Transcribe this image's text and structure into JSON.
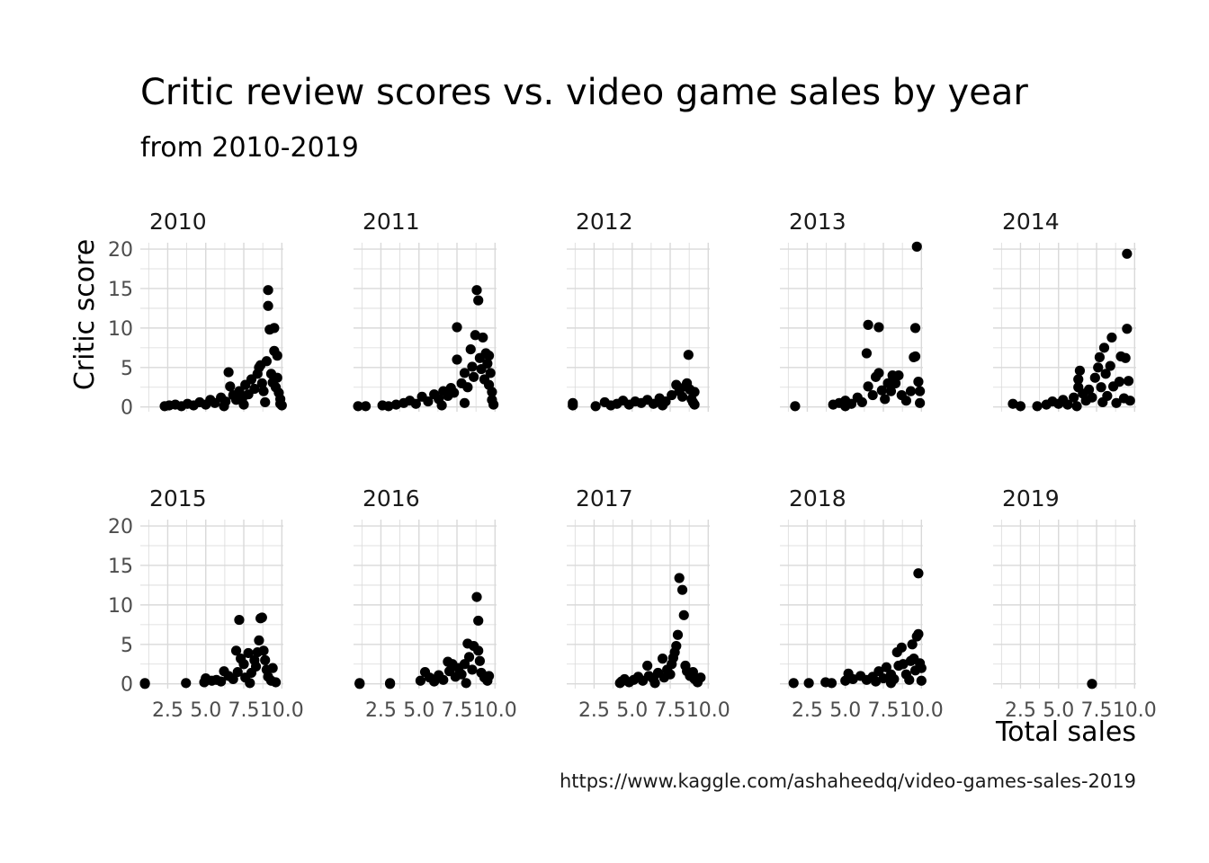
{
  "chart_data": {
    "type": "scatter",
    "faceted": true,
    "title": "Critic review scores vs. video game sales by year",
    "subtitle": "from 2010-2019",
    "xlabel": "Total sales",
    "ylabel": "Critic score",
    "caption": "https://www.kaggle.com/ashaheedq/video-games-sales-2019",
    "xlim": [
      0.7,
      10.1
    ],
    "ylim": [
      -0.6,
      20.8
    ],
    "x_ticks": [
      "2.5",
      "5.0",
      "7.5",
      "10.0"
    ],
    "x_tick_values": [
      2.5,
      5.0,
      7.5,
      10.0
    ],
    "y_ticks": [
      "0",
      "5",
      "10",
      "15",
      "20"
    ],
    "y_tick_values": [
      0,
      5,
      10,
      15,
      20
    ],
    "grid": true,
    "layout": {
      "rows": 2,
      "cols": 5
    },
    "marker_color": "#000000",
    "grid_color": "#d9d9d9",
    "panels": [
      {
        "label": "2010",
        "points": [
          [
            2.3,
            0.1
          ],
          [
            2.6,
            0.2
          ],
          [
            3.0,
            0.3
          ],
          [
            3.4,
            0.1
          ],
          [
            3.8,
            0.4
          ],
          [
            4.2,
            0.2
          ],
          [
            4.6,
            0.6
          ],
          [
            5.0,
            0.3
          ],
          [
            5.3,
            0.9
          ],
          [
            5.6,
            0.5
          ],
          [
            6.0,
            1.2
          ],
          [
            6.3,
            0.7
          ],
          [
            6.5,
            4.4
          ],
          [
            6.6,
            2.6
          ],
          [
            6.8,
            1.5
          ],
          [
            7.0,
            0.9
          ],
          [
            7.2,
            2.0
          ],
          [
            7.4,
            1.1
          ],
          [
            7.6,
            2.8
          ],
          [
            7.8,
            1.6
          ],
          [
            8.0,
            3.5
          ],
          [
            8.2,
            2.3
          ],
          [
            8.4,
            4.2
          ],
          [
            8.5,
            5.0
          ],
          [
            8.6,
            5.3
          ],
          [
            8.7,
            3.0
          ],
          [
            8.8,
            2.0
          ],
          [
            9.0,
            5.8
          ],
          [
            9.1,
            14.8
          ],
          [
            9.1,
            12.8
          ],
          [
            9.2,
            9.8
          ],
          [
            9.3,
            4.2
          ],
          [
            9.4,
            3.1
          ],
          [
            9.5,
            10.0
          ],
          [
            9.5,
            7.1
          ],
          [
            9.6,
            2.5
          ],
          [
            9.7,
            6.5
          ],
          [
            9.7,
            3.7
          ],
          [
            9.8,
            1.8
          ],
          [
            9.9,
            1.0
          ],
          [
            9.9,
            0.4
          ],
          [
            10.0,
            0.2
          ],
          [
            7.5,
            0.3
          ],
          [
            8.9,
            0.6
          ],
          [
            6.2,
            0.1
          ]
        ]
      },
      {
        "label": "2011",
        "points": [
          [
            1.0,
            0.1
          ],
          [
            1.5,
            0.1
          ],
          [
            2.6,
            0.2
          ],
          [
            3.0,
            0.1
          ],
          [
            3.5,
            0.3
          ],
          [
            4.0,
            0.5
          ],
          [
            4.4,
            0.8
          ],
          [
            4.8,
            0.4
          ],
          [
            5.2,
            1.3
          ],
          [
            5.6,
            0.7
          ],
          [
            6.0,
            1.6
          ],
          [
            6.3,
            1.0
          ],
          [
            6.6,
            2.0
          ],
          [
            6.9,
            1.4
          ],
          [
            7.1,
            2.4
          ],
          [
            7.3,
            1.8
          ],
          [
            7.5,
            6.0
          ],
          [
            7.5,
            10.1
          ],
          [
            7.8,
            3.0
          ],
          [
            8.0,
            4.3
          ],
          [
            8.2,
            2.5
          ],
          [
            8.4,
            7.3
          ],
          [
            8.5,
            5.1
          ],
          [
            8.6,
            3.8
          ],
          [
            8.7,
            9.1
          ],
          [
            8.8,
            14.8
          ],
          [
            8.9,
            13.5
          ],
          [
            9.0,
            6.2
          ],
          [
            9.1,
            4.8
          ],
          [
            9.2,
            8.8
          ],
          [
            9.3,
            3.5
          ],
          [
            9.4,
            6.8
          ],
          [
            9.5,
            5.5
          ],
          [
            9.6,
            2.8
          ],
          [
            9.6,
            6.5
          ],
          [
            9.7,
            4.3
          ],
          [
            9.8,
            1.9
          ],
          [
            9.8,
            0.9
          ],
          [
            9.9,
            0.3
          ],
          [
            8.0,
            0.5
          ],
          [
            6.5,
            0.2
          ]
        ]
      },
      {
        "label": "2012",
        "points": [
          [
            1.1,
            0.5
          ],
          [
            1.1,
            0.2
          ],
          [
            2.6,
            0.1
          ],
          [
            3.2,
            0.6
          ],
          [
            3.6,
            0.2
          ],
          [
            4.0,
            0.4
          ],
          [
            4.4,
            0.8
          ],
          [
            4.8,
            0.3
          ],
          [
            5.2,
            0.7
          ],
          [
            5.6,
            0.5
          ],
          [
            6.0,
            0.9
          ],
          [
            6.4,
            0.4
          ],
          [
            6.8,
            1.1
          ],
          [
            7.2,
            0.7
          ],
          [
            7.6,
            1.5
          ],
          [
            7.9,
            2.8
          ],
          [
            8.1,
            2.0
          ],
          [
            8.3,
            1.3
          ],
          [
            8.5,
            2.6
          ],
          [
            8.6,
            3.0
          ],
          [
            8.7,
            6.6
          ],
          [
            8.8,
            2.2
          ],
          [
            8.9,
            1.0
          ],
          [
            9.0,
            0.6
          ],
          [
            9.1,
            1.9
          ],
          [
            9.1,
            0.3
          ],
          [
            7.0,
            0.2
          ]
        ]
      },
      {
        "label": "2013",
        "points": [
          [
            1.7,
            0.1
          ],
          [
            4.2,
            0.3
          ],
          [
            4.6,
            0.5
          ],
          [
            5.0,
            0.8
          ],
          [
            5.4,
            0.4
          ],
          [
            5.8,
            1.2
          ],
          [
            6.1,
            0.6
          ],
          [
            6.4,
            6.8
          ],
          [
            6.5,
            2.6
          ],
          [
            6.5,
            10.4
          ],
          [
            6.8,
            1.5
          ],
          [
            7.0,
            3.8
          ],
          [
            7.2,
            10.1
          ],
          [
            7.2,
            4.3
          ],
          [
            7.4,
            2.1
          ],
          [
            7.6,
            1.0
          ],
          [
            7.8,
            3.0
          ],
          [
            8.0,
            2.0
          ],
          [
            8.1,
            4.0
          ],
          [
            8.3,
            3.0
          ],
          [
            8.5,
            4.0
          ],
          [
            8.7,
            1.5
          ],
          [
            9.0,
            0.8
          ],
          [
            9.3,
            2.0
          ],
          [
            9.5,
            6.3
          ],
          [
            9.6,
            6.4
          ],
          [
            9.6,
            10.0
          ],
          [
            9.7,
            20.3
          ],
          [
            9.8,
            3.2
          ],
          [
            9.9,
            2.0
          ],
          [
            9.9,
            0.5
          ],
          [
            5.0,
            0.1
          ]
        ]
      },
      {
        "label": "2014",
        "points": [
          [
            2.0,
            0.4
          ],
          [
            2.5,
            0.1
          ],
          [
            3.6,
            0.1
          ],
          [
            4.2,
            0.3
          ],
          [
            4.6,
            0.7
          ],
          [
            5.0,
            0.4
          ],
          [
            5.3,
            0.9
          ],
          [
            5.6,
            0.3
          ],
          [
            6.0,
            1.2
          ],
          [
            6.3,
            2.5
          ],
          [
            6.3,
            3.5
          ],
          [
            6.4,
            4.6
          ],
          [
            6.6,
            1.7
          ],
          [
            6.8,
            0.8
          ],
          [
            7.0,
            2.2
          ],
          [
            7.2,
            1.2
          ],
          [
            7.4,
            3.7
          ],
          [
            7.6,
            5.0
          ],
          [
            7.7,
            6.3
          ],
          [
            7.8,
            2.5
          ],
          [
            7.9,
            0.6
          ],
          [
            8.0,
            7.5
          ],
          [
            8.1,
            4.2
          ],
          [
            8.2,
            1.4
          ],
          [
            8.4,
            5.2
          ],
          [
            8.5,
            8.8
          ],
          [
            8.6,
            2.6
          ],
          [
            8.8,
            0.5
          ],
          [
            9.0,
            3.2
          ],
          [
            9.1,
            6.4
          ],
          [
            9.3,
            1.1
          ],
          [
            9.4,
            6.2
          ],
          [
            9.5,
            9.9
          ],
          [
            9.5,
            19.4
          ],
          [
            9.6,
            3.3
          ],
          [
            9.7,
            0.8
          ],
          [
            6.2,
            0.1
          ]
        ]
      },
      {
        "label": "2015",
        "points": [
          [
            1.0,
            0.1
          ],
          [
            1.0,
            0.0
          ],
          [
            3.7,
            0.1
          ],
          [
            4.9,
            0.2
          ],
          [
            5.0,
            0.7
          ],
          [
            5.4,
            0.4
          ],
          [
            5.7,
            0.5
          ],
          [
            6.0,
            0.3
          ],
          [
            6.2,
            1.6
          ],
          [
            6.5,
            1.0
          ],
          [
            6.8,
            0.6
          ],
          [
            7.0,
            4.2
          ],
          [
            7.1,
            1.5
          ],
          [
            7.2,
            8.1
          ],
          [
            7.3,
            3.2
          ],
          [
            7.5,
            2.5
          ],
          [
            7.6,
            0.8
          ],
          [
            7.8,
            3.9
          ],
          [
            8.0,
            1.4
          ],
          [
            8.2,
            3.0
          ],
          [
            8.3,
            2.2
          ],
          [
            8.4,
            4.0
          ],
          [
            8.5,
            5.5
          ],
          [
            8.6,
            8.3
          ],
          [
            8.7,
            8.4
          ],
          [
            8.8,
            4.2
          ],
          [
            8.9,
            3.0
          ],
          [
            9.0,
            1.8
          ],
          [
            9.1,
            0.9
          ],
          [
            9.3,
            0.4
          ],
          [
            9.4,
            2.0
          ],
          [
            9.6,
            0.2
          ],
          [
            7.9,
            0.1
          ]
        ]
      },
      {
        "label": "2016",
        "points": [
          [
            1.1,
            0.1
          ],
          [
            1.1,
            0.0
          ],
          [
            3.1,
            0.1
          ],
          [
            3.1,
            0.0
          ],
          [
            5.1,
            0.4
          ],
          [
            5.4,
            1.5
          ],
          [
            5.7,
            0.8
          ],
          [
            6.0,
            0.3
          ],
          [
            6.3,
            1.1
          ],
          [
            6.6,
            0.5
          ],
          [
            6.9,
            2.8
          ],
          [
            7.0,
            1.6
          ],
          [
            7.2,
            2.5
          ],
          [
            7.4,
            0.9
          ],
          [
            7.6,
            2.0
          ],
          [
            7.8,
            1.2
          ],
          [
            8.0,
            2.5
          ],
          [
            8.2,
            5.1
          ],
          [
            8.3,
            3.4
          ],
          [
            8.5,
            1.8
          ],
          [
            8.6,
            4.8
          ],
          [
            8.8,
            11.0
          ],
          [
            8.9,
            8.0
          ],
          [
            8.9,
            4.2
          ],
          [
            9.0,
            2.9
          ],
          [
            9.1,
            1.4
          ],
          [
            9.3,
            0.8
          ],
          [
            9.5,
            0.4
          ],
          [
            9.6,
            1.0
          ],
          [
            8.1,
            0.1
          ]
        ]
      },
      {
        "label": "2017",
        "points": [
          [
            4.2,
            0.1
          ],
          [
            4.3,
            0.3
          ],
          [
            4.5,
            0.6
          ],
          [
            4.8,
            0.2
          ],
          [
            5.1,
            0.5
          ],
          [
            5.4,
            0.9
          ],
          [
            5.7,
            0.4
          ],
          [
            6.0,
            2.3
          ],
          [
            6.1,
            1.0
          ],
          [
            6.4,
            0.6
          ],
          [
            6.7,
            1.4
          ],
          [
            7.0,
            3.2
          ],
          [
            7.1,
            0.8
          ],
          [
            7.3,
            1.8
          ],
          [
            7.5,
            1.2
          ],
          [
            7.6,
            2.5
          ],
          [
            7.7,
            3.3
          ],
          [
            7.8,
            4.0
          ],
          [
            7.9,
            4.8
          ],
          [
            8.0,
            6.2
          ],
          [
            8.1,
            13.4
          ],
          [
            8.3,
            11.9
          ],
          [
            8.4,
            8.7
          ],
          [
            8.5,
            2.3
          ],
          [
            8.6,
            1.6
          ],
          [
            8.8,
            1.0
          ],
          [
            9.0,
            1.5
          ],
          [
            9.1,
            0.6
          ],
          [
            9.3,
            0.2
          ],
          [
            9.5,
            0.8
          ],
          [
            6.5,
            0.1
          ]
        ]
      },
      {
        "label": "2018",
        "points": [
          [
            1.6,
            0.1
          ],
          [
            2.6,
            0.1
          ],
          [
            3.7,
            0.2
          ],
          [
            4.1,
            0.1
          ],
          [
            5.0,
            0.4
          ],
          [
            5.2,
            1.3
          ],
          [
            5.5,
            0.6
          ],
          [
            6.0,
            1.0
          ],
          [
            6.4,
            0.5
          ],
          [
            6.8,
            0.9
          ],
          [
            7.0,
            0.3
          ],
          [
            7.2,
            1.6
          ],
          [
            7.5,
            0.7
          ],
          [
            7.7,
            2.1
          ],
          [
            8.0,
            1.2
          ],
          [
            8.2,
            0.6
          ],
          [
            8.4,
            4.0
          ],
          [
            8.5,
            2.3
          ],
          [
            8.7,
            4.6
          ],
          [
            8.8,
            2.5
          ],
          [
            9.0,
            1.2
          ],
          [
            9.2,
            0.5
          ],
          [
            9.3,
            2.9
          ],
          [
            9.4,
            5.0
          ],
          [
            9.5,
            3.2
          ],
          [
            9.6,
            1.7
          ],
          [
            9.7,
            6.0
          ],
          [
            9.8,
            6.3
          ],
          [
            9.8,
            14.0
          ],
          [
            9.9,
            2.6
          ],
          [
            10.0,
            2.0
          ],
          [
            10.0,
            0.4
          ],
          [
            8.0,
            0.1
          ]
        ]
      },
      {
        "label": "2019",
        "points": [
          [
            7.2,
            0.0
          ]
        ]
      }
    ]
  }
}
